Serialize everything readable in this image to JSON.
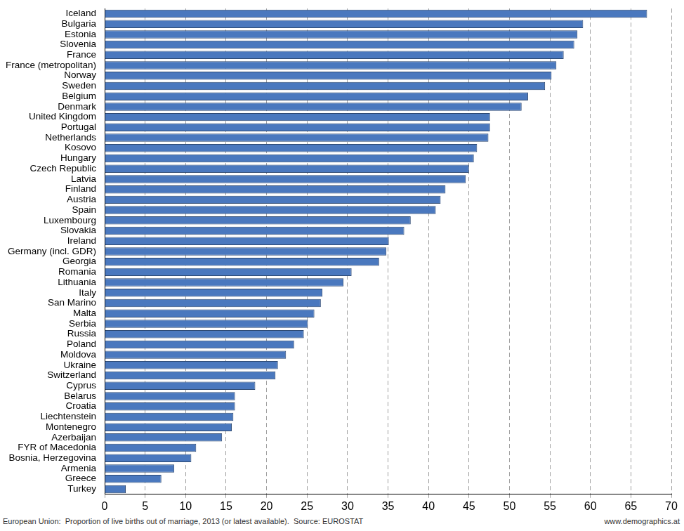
{
  "chart_data": {
    "type": "bar",
    "orientation": "horizontal",
    "title": "European Union:  Proportion of live births out of marriage, 2013 (or latest available).  Source: EUROSTAT",
    "annotations": [
      "www.demographics.at"
    ],
    "categories": [
      "Iceland",
      "Bulgaria",
      "Estonia",
      "Slovenia",
      "France",
      "France (metropolitan)",
      "Norway",
      "Sweden",
      "Belgium",
      "Denmark",
      "United Kingdom",
      "Portugal",
      "Netherlands",
      "Kosovo",
      "Hungary",
      "Czech Republic",
      "Latvia",
      "Finland",
      "Austria",
      "Spain",
      "Luxembourg",
      "Slovakia",
      "Ireland",
      "Germany (incl. GDR)",
      "Georgia",
      "Romania",
      "Lithuania",
      "Italy",
      "San Marino",
      "Malta",
      "Serbia",
      "Russia",
      "Poland",
      "Moldova",
      "Ukraine",
      "Switzerland",
      "Cyprus",
      "Belarus",
      "Croatia",
      "Liechtenstein",
      "Montenegro",
      "Azerbaijan",
      "FYR of Macedonia",
      "Bosnia, Herzegovina",
      "Armenia",
      "Greece",
      "Turkey"
    ],
    "values": [
      67.0,
      59.1,
      58.4,
      58.0,
      56.7,
      55.8,
      55.2,
      54.4,
      52.3,
      51.5,
      47.6,
      47.6,
      47.4,
      46.0,
      45.6,
      45.0,
      44.6,
      42.1,
      41.5,
      40.9,
      37.8,
      37.0,
      35.1,
      34.8,
      33.9,
      30.5,
      29.5,
      26.9,
      26.7,
      25.9,
      25.1,
      24.6,
      23.4,
      22.4,
      21.4,
      21.1,
      18.6,
      16.1,
      16.1,
      15.9,
      15.7,
      14.5,
      11.3,
      10.7,
      8.6,
      7.0,
      2.6
    ],
    "color": "#4a78be",
    "xlim": [
      0,
      70
    ],
    "xticks": [
      0,
      5,
      10,
      15,
      20,
      25,
      30,
      35,
      40,
      45,
      50,
      55,
      60,
      65,
      70
    ],
    "grid": true
  }
}
